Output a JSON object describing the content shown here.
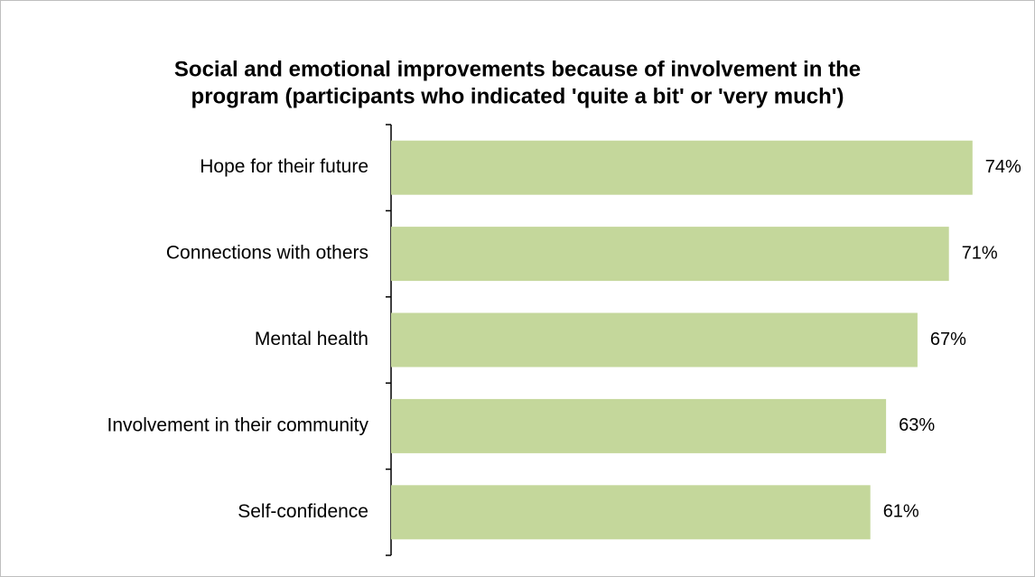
{
  "chart_data": {
    "type": "bar",
    "orientation": "horizontal",
    "title": [
      "Social and emotional improvements because of involvement in the",
      "program (participants who indicated 'quite a bit' or 'very much')"
    ],
    "categories": [
      "Hope for their future",
      "Connections with others",
      "Mental health",
      "Involvement in their community",
      "Self-confidence"
    ],
    "values": [
      74,
      71,
      67,
      63,
      61
    ],
    "value_labels": [
      "74%",
      "71%",
      "67%",
      "63%",
      "61%"
    ],
    "color": "#c4d79b",
    "xlim": [
      0,
      80
    ]
  }
}
